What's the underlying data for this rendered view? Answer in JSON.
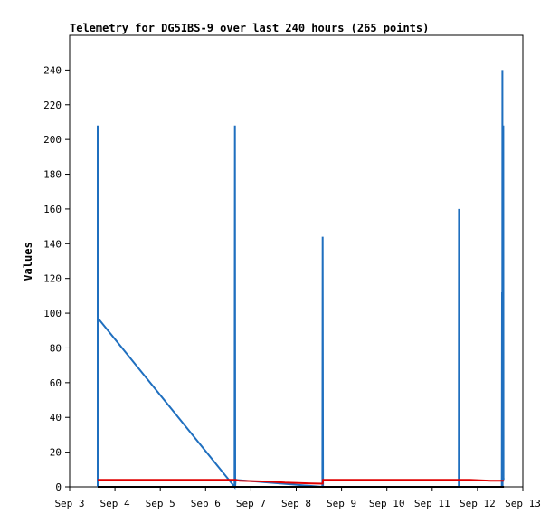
{
  "chart_data": {
    "type": "line",
    "title": "Telemetry for DG5IBS-9 over last 240 hours (265 points)",
    "xlabel": "",
    "ylabel": "Values",
    "x_ticks": [
      "Sep 3",
      "Sep 4",
      "Sep 5",
      "Sep 6",
      "Sep 7",
      "Sep 8",
      "Sep 9",
      "Sep 10",
      "Sep 11",
      "Sep 12",
      "Sep 13"
    ],
    "xlim": [
      "Sep 3",
      "Sep 13"
    ],
    "ylim": [
      0,
      260
    ],
    "y_ticks": [
      0,
      20,
      40,
      60,
      80,
      100,
      120,
      140,
      160,
      180,
      200,
      220,
      240
    ],
    "grid": false,
    "legend": "none",
    "series": [
      {
        "color": "#1f6fbf",
        "x": [
          "Sep 3 14:50",
          "Sep 3 14:52",
          "Sep 3 14:53",
          "Sep 3 14:55",
          "Sep 3 14:56",
          "Sep 3 14:58",
          "Sep 3 15:00",
          "Sep 3 15:01",
          "Sep 3 15:05",
          "Sep 6 15:20",
          "Sep 6 15:30",
          "Sep 6 15:40",
          "Sep 6 15:50",
          "Sep 8 13:50",
          "Sep 8 14:00",
          "Sep 8 14:10",
          "Sep 11 14:05",
          "Sep 11 14:10",
          "Sep 11 14:15",
          "Sep 12 12:50",
          "Sep 12 13:00",
          "Sep 12 13:05",
          "Sep 12 13:10",
          "Sep 12 13:15",
          "Sep 12 13:20",
          "Sep 12 13:25",
          "Sep 12 13:30",
          "Sep 12 13:40",
          "Sep 12 13:45",
          "Sep 12 13:50"
        ],
        "y": [
          0,
          208,
          0,
          180,
          0,
          124,
          97,
          0,
          97,
          0,
          208,
          0,
          4,
          0,
          144,
          0,
          0,
          160,
          0,
          0,
          112,
          0,
          240,
          0,
          208,
          5,
          4,
          208,
          4,
          5
        ]
      },
      {
        "color": "#e00000",
        "x": [
          "Sep 3 14:50",
          "Sep 6 16:00",
          "Sep 6 18:00",
          "Sep 7 10:00",
          "Sep 7 18:00",
          "Sep 8 08:00",
          "Sep 8 14:00",
          "Sep 8 14:10",
          "Sep 10 12:00",
          "Sep 11 20:00",
          "Sep 12 07:00",
          "Sep 12 14:00"
        ],
        "y": [
          4,
          4,
          3.5,
          3,
          2.5,
          2,
          1.8,
          4,
          4,
          4,
          3.5,
          3.5
        ]
      },
      {
        "color": "#000000",
        "x": [
          "Sep 3 14:50",
          "Sep 12 14:00"
        ],
        "y": [
          0,
          0
        ]
      }
    ]
  }
}
